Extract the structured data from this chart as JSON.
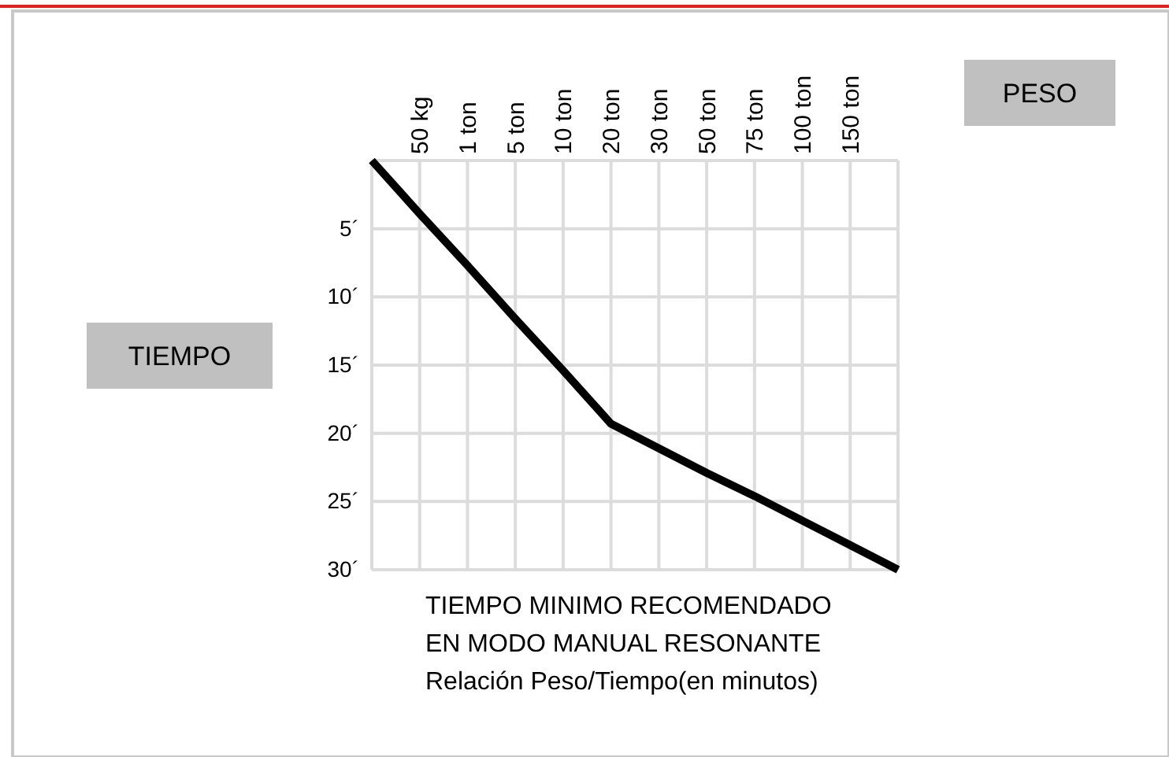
{
  "chart_data": {
    "type": "line",
    "xlabel": "PESO",
    "ylabel": "TIEMPO",
    "categories": [
      null,
      "50 kg",
      "1 ton",
      "5 ton",
      "10 ton",
      "20 ton",
      "30 ton",
      "50 ton",
      "75 ton",
      "100 ton",
      "150 ton",
      null
    ],
    "series": [
      {
        "color": "#000000",
        "values": [
          0,
          3.9,
          7.7,
          11.6,
          15.4,
          19.3,
          21.1,
          22.9,
          24.6,
          26.4,
          28.2,
          30
        ]
      }
    ],
    "ylim": [
      30,
      0
    ],
    "yticks": [
      {
        "value": 0,
        "label": null
      },
      {
        "value": 5,
        "label": "5´"
      },
      {
        "value": 10,
        "label": "10´"
      },
      {
        "value": 15,
        "label": "15´"
      },
      {
        "value": 20,
        "label": "20´"
      },
      {
        "value": 25,
        "label": "25´"
      },
      {
        "value": 30,
        "label": "30´"
      }
    ],
    "grid": true,
    "marker": "none",
    "line_style": "solid",
    "annotations": [
      "TIEMPO MINIMO RECOMENDADO",
      "EN MODO MANUAL RESONANTE",
      "Relación Peso/Tiempo(en minutos)"
    ]
  }
}
